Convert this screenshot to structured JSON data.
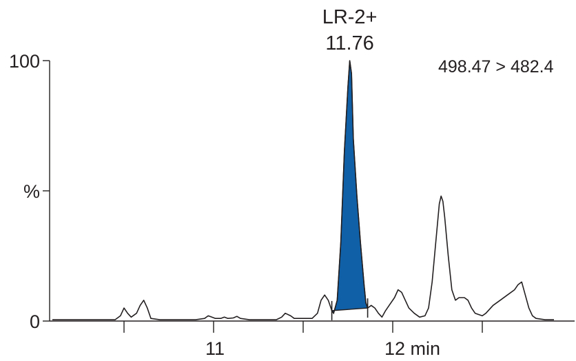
{
  "chart_data": {
    "type": "line",
    "title": "",
    "xlabel": "",
    "ylabel": "%",
    "xlim": [
      10.1,
      13.0
    ],
    "ylim": [
      0,
      100
    ],
    "x_ticks": [
      10.5,
      11.0,
      11.5,
      12.0,
      12.5
    ],
    "x_tick_labels": [
      {
        "x": 11.0,
        "label": "11"
      },
      {
        "x": 12.0,
        "label": "12 min"
      }
    ],
    "y_tick_labels": [
      {
        "y": 100,
        "label": "100"
      },
      {
        "y": 50,
        "label": "%"
      },
      {
        "y": 0,
        "label": "0"
      }
    ],
    "transition_label": "498.47 > 482.4",
    "peak_annotation": {
      "name": "LR-2+",
      "retention_time": "11.76",
      "x": 11.76,
      "y": 100
    },
    "integration_window": [
      11.66,
      11.86
    ],
    "peak_fill_color": "#1060a8",
    "series": [
      {
        "values": [
          [
            10.1,
            0.5
          ],
          [
            10.3,
            0.5
          ],
          [
            10.45,
            0.5
          ],
          [
            10.48,
            2
          ],
          [
            10.5,
            5
          ],
          [
            10.52,
            3
          ],
          [
            10.54,
            1.5
          ],
          [
            10.57,
            3
          ],
          [
            10.59,
            6
          ],
          [
            10.61,
            8
          ],
          [
            10.63,
            5
          ],
          [
            10.65,
            1
          ],
          [
            10.7,
            0.5
          ],
          [
            10.9,
            0.5
          ],
          [
            10.95,
            1
          ],
          [
            10.97,
            2
          ],
          [
            10.99,
            1.5
          ],
          [
            11.01,
            1
          ],
          [
            11.04,
            1
          ],
          [
            11.06,
            1.5
          ],
          [
            11.08,
            1
          ],
          [
            11.11,
            1.2
          ],
          [
            11.13,
            1.8
          ],
          [
            11.15,
            1
          ],
          [
            11.2,
            0.5
          ],
          [
            11.35,
            0.5
          ],
          [
            11.38,
            1.5
          ],
          [
            11.4,
            3
          ],
          [
            11.43,
            2
          ],
          [
            11.45,
            1
          ],
          [
            11.55,
            1
          ],
          [
            11.58,
            3
          ],
          [
            11.6,
            8
          ],
          [
            11.62,
            10
          ],
          [
            11.64,
            8
          ],
          [
            11.66,
            4
          ],
          [
            11.67,
            3
          ],
          [
            11.69,
            8
          ],
          [
            11.71,
            30
          ],
          [
            11.73,
            65
          ],
          [
            11.75,
            90
          ],
          [
            11.76,
            100
          ],
          [
            11.77,
            95
          ],
          [
            11.78,
            70
          ],
          [
            11.8,
            48
          ],
          [
            11.82,
            30
          ],
          [
            11.84,
            14
          ],
          [
            11.85,
            7
          ],
          [
            11.86,
            5
          ],
          [
            11.88,
            6
          ],
          [
            11.9,
            5
          ],
          [
            11.92,
            3
          ],
          [
            11.94,
            1.5
          ],
          [
            11.96,
            4
          ],
          [
            11.98,
            6
          ],
          [
            12.01,
            9
          ],
          [
            12.03,
            12
          ],
          [
            12.05,
            11
          ],
          [
            12.07,
            8
          ],
          [
            12.09,
            5
          ],
          [
            12.12,
            3
          ],
          [
            12.15,
            1.5
          ],
          [
            12.18,
            2
          ],
          [
            12.2,
            5
          ],
          [
            12.22,
            15
          ],
          [
            12.24,
            30
          ],
          [
            12.26,
            45
          ],
          [
            12.27,
            48
          ],
          [
            12.28,
            46
          ],
          [
            12.29,
            40
          ],
          [
            12.31,
            25
          ],
          [
            12.33,
            12
          ],
          [
            12.35,
            8
          ],
          [
            12.37,
            9
          ],
          [
            12.4,
            9
          ],
          [
            12.42,
            8
          ],
          [
            12.44,
            5
          ],
          [
            12.46,
            3
          ],
          [
            12.5,
            2
          ],
          [
            12.52,
            3
          ],
          [
            12.56,
            6
          ],
          [
            12.6,
            8
          ],
          [
            12.64,
            10
          ],
          [
            12.68,
            12
          ],
          [
            12.7,
            14
          ],
          [
            12.72,
            15
          ],
          [
            12.74,
            10
          ],
          [
            12.76,
            5
          ],
          [
            12.78,
            2
          ],
          [
            12.8,
            1
          ],
          [
            12.85,
            0.5
          ],
          [
            12.9,
            0.5
          ]
        ]
      }
    ]
  }
}
